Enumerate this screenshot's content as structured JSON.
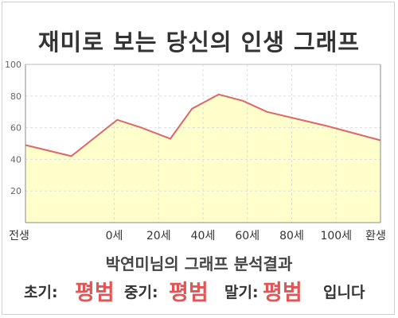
{
  "title": "재미로 보는 당신의 인생 그래프",
  "chart_data": {
    "type": "area",
    "x": [
      0,
      30,
      60,
      64,
      70,
      80,
      90,
      100,
      110,
      130
    ],
    "x_labels": [
      {
        "x": 0,
        "label": "전생"
      },
      {
        "x": 40,
        "label": "0세"
      },
      {
        "x": 60,
        "label": "20세"
      },
      {
        "x": 80,
        "label": "40세"
      },
      {
        "x": 100,
        "label": "60세"
      },
      {
        "x": 120,
        "label": "80세"
      },
      {
        "x": 140,
        "label": "100세"
      },
      {
        "x": 160,
        "label": "환생"
      }
    ],
    "series": [
      {
        "values": [
          49,
          42,
          65,
          60,
          53,
          72,
          81,
          77,
          70,
          61,
          52
        ]
      }
    ],
    "x_values": [
      0,
      30,
      60,
      75,
      95,
      110,
      127,
      142,
      160,
      200,
      235
    ],
    "ylim": [
      0,
      100
    ],
    "yticks": [
      20,
      40,
      60,
      80,
      100
    ],
    "grid": true,
    "colors": {
      "line": "#e06666",
      "fill": "#ffffcc",
      "grid": "#dddddd"
    }
  },
  "result": {
    "text": "박연미님의 그래프 분석결과"
  },
  "phases": {
    "early_label": "초기:",
    "early_value": "평범",
    "mid_label": "중기:",
    "mid_value": "평범",
    "late_label": "말기:",
    "late_value": "평범",
    "suffix": "입니다",
    "value_color": "#e05555"
  }
}
